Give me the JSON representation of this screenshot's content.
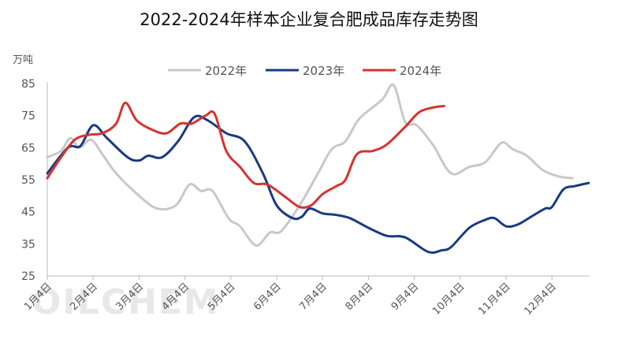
{
  "chart_data": {
    "type": "line",
    "title": "2022-2024年样本企业复合肥成品库存走势图",
    "unit_label": "万吨",
    "watermark": "OILCHEM",
    "ylim": [
      25,
      85
    ],
    "yticks": [
      "25",
      "35",
      "45",
      "55",
      "65",
      "75",
      "85"
    ],
    "x_categories": [
      "1月4日",
      "2月4日",
      "3月4日",
      "4月4日",
      "5月4日",
      "6月4日",
      "7月4日",
      "8月4日",
      "9月4日",
      "10月4日",
      "11月4日",
      "12月4日"
    ],
    "grid": false,
    "legend_position": "top",
    "series": [
      {
        "name": "2022年",
        "color": "#c8c8c8",
        "points": [
          [
            0,
            62
          ],
          [
            0.3,
            64
          ],
          [
            0.5,
            68
          ],
          [
            0.7,
            65
          ],
          [
            0.95,
            67.5
          ],
          [
            1.2,
            63
          ],
          [
            1.5,
            57
          ],
          [
            2.0,
            50
          ],
          [
            2.4,
            46
          ],
          [
            2.8,
            47
          ],
          [
            3.1,
            53.5
          ],
          [
            3.35,
            51.5
          ],
          [
            3.6,
            51.5
          ],
          [
            3.95,
            43
          ],
          [
            4.2,
            40.5
          ],
          [
            4.55,
            34.5
          ],
          [
            4.85,
            38.5
          ],
          [
            5.1,
            39
          ],
          [
            5.5,
            47
          ],
          [
            5.9,
            57
          ],
          [
            6.2,
            64.5
          ],
          [
            6.5,
            67
          ],
          [
            6.8,
            74
          ],
          [
            7.3,
            80
          ],
          [
            7.55,
            84.5
          ],
          [
            7.8,
            73
          ],
          [
            8.05,
            72
          ],
          [
            8.4,
            66
          ],
          [
            8.8,
            57
          ],
          [
            9.2,
            59
          ],
          [
            9.55,
            60.5
          ],
          [
            9.9,
            66.5
          ],
          [
            10.15,
            64.5
          ],
          [
            10.45,
            62.5
          ],
          [
            10.8,
            58
          ],
          [
            11.15,
            56
          ],
          [
            11.45,
            55.5
          ]
        ]
      },
      {
        "name": "2023年",
        "color": "#173b82",
        "points": [
          [
            0,
            57
          ],
          [
            0.45,
            65
          ],
          [
            0.72,
            65.5
          ],
          [
            1.0,
            72
          ],
          [
            1.3,
            68
          ],
          [
            1.75,
            62
          ],
          [
            2.0,
            61
          ],
          [
            2.2,
            62.5
          ],
          [
            2.5,
            62
          ],
          [
            2.85,
            67
          ],
          [
            3.2,
            74.5
          ],
          [
            3.5,
            73.5
          ],
          [
            3.9,
            69.5
          ],
          [
            4.3,
            67
          ],
          [
            4.7,
            57
          ],
          [
            5.0,
            47
          ],
          [
            5.35,
            43
          ],
          [
            5.55,
            43.5
          ],
          [
            5.72,
            46
          ],
          [
            6.0,
            44.5
          ],
          [
            6.3,
            44
          ],
          [
            6.6,
            43
          ],
          [
            7.0,
            40
          ],
          [
            7.4,
            37.5
          ],
          [
            7.8,
            37
          ],
          [
            8.3,
            32.5
          ],
          [
            8.6,
            33
          ],
          [
            8.8,
            34
          ],
          [
            9.2,
            40
          ],
          [
            9.55,
            42.5
          ],
          [
            9.75,
            43
          ],
          [
            10.0,
            40.5
          ],
          [
            10.25,
            41
          ],
          [
            10.55,
            43.5
          ],
          [
            10.85,
            46
          ],
          [
            11.0,
            46.5
          ],
          [
            11.25,
            52
          ],
          [
            11.5,
            53
          ],
          [
            11.8,
            54
          ]
        ]
      },
      {
        "name": "2024年",
        "color": "#d6332e",
        "points": [
          [
            0,
            55.5
          ],
          [
            0.3,
            62
          ],
          [
            0.6,
            67.5
          ],
          [
            0.9,
            69
          ],
          [
            1.2,
            69.5
          ],
          [
            1.5,
            72.5
          ],
          [
            1.7,
            79
          ],
          [
            1.95,
            73.5
          ],
          [
            2.3,
            70.5
          ],
          [
            2.6,
            69.5
          ],
          [
            2.9,
            72.5
          ],
          [
            3.15,
            72.5
          ],
          [
            3.45,
            75
          ],
          [
            3.65,
            75.5
          ],
          [
            3.9,
            64
          ],
          [
            4.2,
            59
          ],
          [
            4.5,
            54
          ],
          [
            4.8,
            53.5
          ],
          [
            5.2,
            49.5
          ],
          [
            5.5,
            46.5
          ],
          [
            5.75,
            47
          ],
          [
            6.0,
            50.5
          ],
          [
            6.3,
            53
          ],
          [
            6.5,
            55
          ],
          [
            6.75,
            63
          ],
          [
            7.1,
            64
          ],
          [
            7.4,
            66
          ],
          [
            7.8,
            71.5
          ],
          [
            8.1,
            76
          ],
          [
            8.4,
            77.5
          ],
          [
            8.65,
            78
          ]
        ]
      }
    ]
  }
}
